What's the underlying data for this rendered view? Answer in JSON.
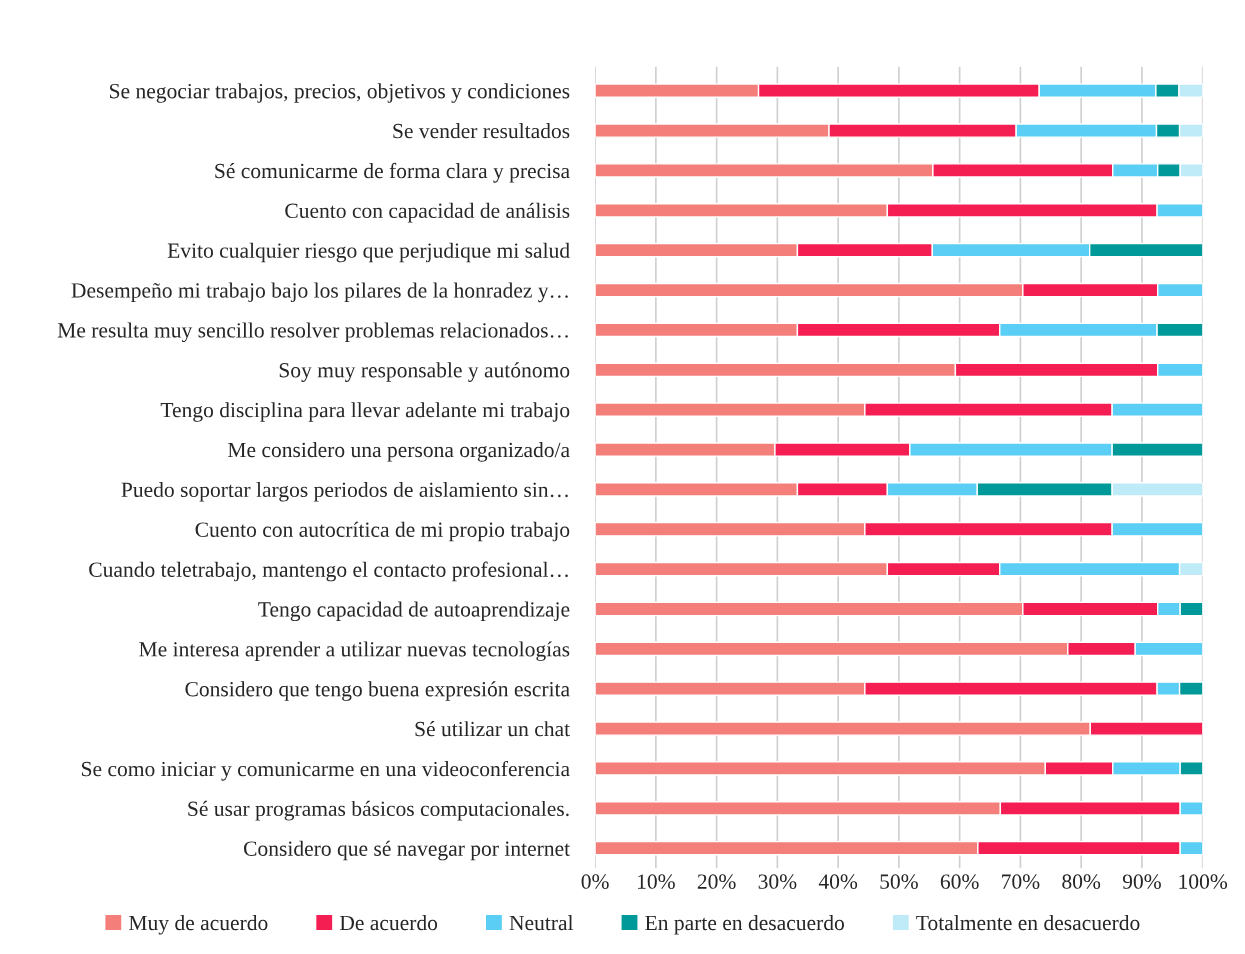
{
  "chart_data": {
    "type": "bar",
    "orientation": "horizontal",
    "stacked": true,
    "categories": [
      "Se negociar trabajos, precios, objetivos y condiciones",
      "Se vender resultados",
      "Sé comunicarme de forma clara y precisa",
      "Cuento con capacidad de análisis",
      "Evito cualquier riesgo que perjudique mi salud",
      "Desempeño mi trabajo bajo los pilares de la honradez y…",
      "Me resulta muy sencillo resolver problemas relacionados…",
      "Soy muy responsable y autónomo",
      "Tengo disciplina para llevar adelante mi trabajo",
      "Me considero una persona organizado/a",
      "Puedo soportar largos periodos de aislamiento sin…",
      "Cuento con autocrítica de mi propio trabajo",
      "Cuando teletrabajo, mantengo el contacto profesional…",
      "Tengo capacidad de autoaprendizaje",
      "Me interesa aprender a utilizar nuevas tecnologías",
      "Considero que tengo buena expresión escrita",
      "Sé utilizar un chat",
      "Se como iniciar y comunicarme en una videoconferencia",
      "Sé usar programas básicos computacionales.",
      "Considero que sé navegar por internet"
    ],
    "series": [
      {
        "name": "Muy de acuerdo",
        "color": "#f47f7a",
        "values": [
          26.9,
          38.5,
          55.6,
          48.1,
          33.3,
          70.4,
          33.3,
          59.3,
          44.4,
          29.6,
          33.3,
          44.4,
          48.1,
          70.4,
          77.8,
          44.4,
          81.5,
          74.1,
          66.7,
          63.0
        ]
      },
      {
        "name": "De acuerdo",
        "color": "#f41e53",
        "values": [
          46.2,
          30.8,
          29.6,
          44.4,
          22.2,
          22.2,
          33.3,
          33.3,
          40.7,
          22.2,
          14.8,
          40.7,
          18.5,
          22.2,
          11.1,
          48.1,
          18.5,
          11.1,
          29.6,
          33.3
        ]
      },
      {
        "name": "Neutral",
        "color": "#5acef5",
        "values": [
          19.2,
          23.1,
          7.4,
          7.5,
          25.9,
          7.4,
          25.9,
          7.4,
          14.9,
          33.3,
          14.8,
          14.9,
          29.6,
          3.7,
          11.1,
          3.7,
          0,
          11.1,
          3.7,
          3.7
        ]
      },
      {
        "name": "En parte en desacuerdo",
        "color": "#009999",
        "values": [
          3.8,
          3.8,
          3.7,
          0,
          18.6,
          0,
          7.5,
          0,
          0,
          14.9,
          22.2,
          0,
          0,
          3.7,
          0,
          3.8,
          0,
          3.7,
          0,
          0
        ]
      },
      {
        "name": "Totalmente en desacuerdo",
        "color": "#bfeaf8",
        "values": [
          3.9,
          3.8,
          3.7,
          0,
          0,
          0,
          0,
          0,
          0,
          0,
          14.9,
          0,
          3.8,
          0,
          0,
          0,
          0,
          0,
          0,
          0
        ]
      }
    ],
    "xlim": [
      0,
      100
    ],
    "xticks": [
      {
        "value": 0,
        "label": "0%"
      },
      {
        "value": 10,
        "label": "10%"
      },
      {
        "value": 20,
        "label": "20%"
      },
      {
        "value": 30,
        "label": "30%"
      },
      {
        "value": 40,
        "label": "40%"
      },
      {
        "value": 50,
        "label": "50%"
      },
      {
        "value": 60,
        "label": "60%"
      },
      {
        "value": 70,
        "label": "70%"
      },
      {
        "value": 80,
        "label": "80%"
      },
      {
        "value": 90,
        "label": "90%"
      },
      {
        "value": 100,
        "label": "100%"
      }
    ],
    "grid": "x",
    "legend": "bottom"
  }
}
